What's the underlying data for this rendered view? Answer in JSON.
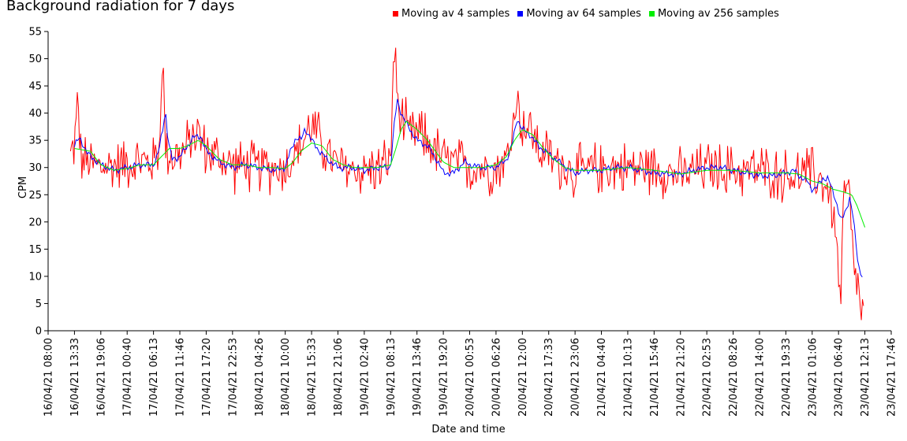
{
  "chart_data": {
    "type": "line",
    "title": "Background radiation for 7 days",
    "xlabel": "Date and time",
    "ylabel": "CPM",
    "ylim": [
      0,
      55
    ],
    "yticks": [
      0,
      5,
      10,
      15,
      20,
      25,
      30,
      35,
      40,
      45,
      50,
      55
    ],
    "x_tick_labels": [
      "16/04/21 08:00",
      "16/04/21 13:33",
      "16/04/21 19:06",
      "17/04/21 00:40",
      "17/04/21 06:13",
      "17/04/21 11:46",
      "17/04/21 17:20",
      "17/04/21 22:53",
      "18/04/21 04:26",
      "18/04/21 10:00",
      "18/04/21 15:33",
      "18/04/21 21:06",
      "19/04/21 02:40",
      "19/04/21 08:13",
      "19/04/21 13:46",
      "19/04/21 19:20",
      "20/04/21 00:53",
      "20/04/21 06:26",
      "20/04/21 12:00",
      "20/04/21 17:33",
      "20/04/21 23:06",
      "21/04/21 04:40",
      "21/04/21 10:13",
      "21/04/21 15:46",
      "21/04/21 21:20",
      "22/04/21 02:53",
      "22/04/21 08:26",
      "22/04/21 14:00",
      "22/04/21 19:33",
      "23/04/21 01:06",
      "23/04/21 06:40",
      "23/04/21 12:13",
      "23/04/21 17:46"
    ],
    "grid": false,
    "legend_position": "top",
    "series": [
      {
        "name": "Moving av 4 samples",
        "color": "#ff0000",
        "keypoints": [
          [
            0.85,
            32
          ],
          [
            0.95,
            33.5
          ],
          [
            1.05,
            36
          ],
          [
            1.12,
            43.5
          ],
          [
            1.25,
            31
          ],
          [
            1.5,
            31
          ],
          [
            2,
            30
          ],
          [
            3,
            31
          ],
          [
            4,
            31
          ],
          [
            4.25,
            35
          ],
          [
            4.3,
            47
          ],
          [
            4.35,
            49.8
          ],
          [
            4.45,
            34
          ],
          [
            4.7,
            32
          ],
          [
            5.2,
            33
          ],
          [
            5.6,
            37
          ],
          [
            6,
            33
          ],
          [
            7,
            30.5
          ],
          [
            8,
            30
          ],
          [
            9,
            30
          ],
          [
            9.6,
            34
          ],
          [
            10,
            38
          ],
          [
            10.4,
            34
          ],
          [
            11,
            30
          ],
          [
            12,
            29.5
          ],
          [
            12.6,
            30
          ],
          [
            13,
            31
          ],
          [
            13.08,
            45
          ],
          [
            13.12,
            52.8
          ],
          [
            13.3,
            40
          ],
          [
            13.7,
            36
          ],
          [
            14.2,
            36
          ],
          [
            15,
            31.5
          ],
          [
            16,
            30
          ],
          [
            17,
            30
          ],
          [
            17.5,
            32
          ],
          [
            17.75,
            43
          ],
          [
            18,
            38
          ],
          [
            18.3,
            37
          ],
          [
            18.7,
            33
          ],
          [
            19.3,
            31
          ],
          [
            20,
            29
          ],
          [
            21,
            30
          ],
          [
            22,
            30
          ],
          [
            23,
            30
          ],
          [
            24,
            28.5
          ],
          [
            25,
            30
          ],
          [
            26,
            29.5
          ],
          [
            27,
            29.5
          ],
          [
            28,
            28.5
          ],
          [
            29,
            29
          ],
          [
            29.5,
            27
          ],
          [
            29.8,
            22
          ],
          [
            29.9,
            17
          ],
          [
            30,
            12
          ],
          [
            30.08,
            3.5
          ],
          [
            30.2,
            25
          ],
          [
            30.4,
            26
          ],
          [
            30.55,
            12
          ],
          [
            30.7,
            10
          ],
          [
            30.8,
            5
          ],
          [
            30.9,
            3
          ],
          [
            30.95,
            2.8
          ]
        ],
        "noise_amplitude": 4
      },
      {
        "name": "Moving av 64 samples",
        "color": "#0000ff",
        "keypoints": [
          [
            1,
            34
          ],
          [
            1.2,
            35.5
          ],
          [
            1.5,
            32.5
          ],
          [
            2,
            30.5
          ],
          [
            2.5,
            29.5
          ],
          [
            3,
            30
          ],
          [
            3.5,
            30.5
          ],
          [
            4,
            30.5
          ],
          [
            4.2,
            33
          ],
          [
            4.35,
            37
          ],
          [
            4.45,
            40.8
          ],
          [
            4.55,
            35
          ],
          [
            4.7,
            31.5
          ],
          [
            5,
            32
          ],
          [
            5.3,
            34
          ],
          [
            5.5,
            35.5
          ],
          [
            5.8,
            35.8
          ],
          [
            6,
            33
          ],
          [
            6.5,
            31
          ],
          [
            7,
            30
          ],
          [
            7.5,
            30.5
          ],
          [
            8,
            30
          ],
          [
            8.6,
            29.5
          ],
          [
            9,
            30
          ],
          [
            9.2,
            33
          ],
          [
            9.4,
            35.5
          ],
          [
            9.6,
            35
          ],
          [
            9.75,
            37.2
          ],
          [
            10,
            35
          ],
          [
            10.3,
            33
          ],
          [
            10.6,
            31.5
          ],
          [
            11,
            30
          ],
          [
            11.5,
            30
          ],
          [
            12,
            29.5
          ],
          [
            12.5,
            30
          ],
          [
            13,
            30
          ],
          [
            13.12,
            37
          ],
          [
            13.25,
            42.5
          ],
          [
            13.4,
            40
          ],
          [
            13.6,
            38
          ],
          [
            14,
            35
          ],
          [
            14.4,
            34
          ],
          [
            14.8,
            31
          ],
          [
            15,
            29
          ],
          [
            15.4,
            29
          ],
          [
            15.8,
            31
          ],
          [
            16,
            30.5
          ],
          [
            16.5,
            30
          ],
          [
            17,
            30
          ],
          [
            17.4,
            31.5
          ],
          [
            17.6,
            34
          ],
          [
            17.8,
            39
          ],
          [
            18,
            37
          ],
          [
            18.3,
            36
          ],
          [
            18.6,
            34
          ],
          [
            19,
            32.5
          ],
          [
            19.4,
            31
          ],
          [
            19.8,
            29.5
          ],
          [
            20,
            29
          ],
          [
            20.5,
            29.5
          ],
          [
            21,
            29.5
          ],
          [
            21.5,
            30
          ],
          [
            22,
            30
          ],
          [
            22.5,
            29.5
          ],
          [
            23,
            29
          ],
          [
            23.5,
            28.8
          ],
          [
            24,
            28.8
          ],
          [
            24.5,
            29.5
          ],
          [
            25,
            30
          ],
          [
            25.5,
            30
          ],
          [
            26,
            29.5
          ],
          [
            26.5,
            29
          ],
          [
            27,
            28.5
          ],
          [
            27.5,
            28.5
          ],
          [
            28,
            29
          ],
          [
            28.3,
            29.5
          ],
          [
            28.5,
            28.5
          ],
          [
            28.8,
            27.5
          ],
          [
            29,
            26
          ],
          [
            29.2,
            26.5
          ],
          [
            29.4,
            28
          ],
          [
            29.6,
            28
          ],
          [
            29.9,
            24
          ],
          [
            30.1,
            20
          ],
          [
            30.3,
            22.5
          ],
          [
            30.42,
            24.5
          ],
          [
            30.55,
            21
          ],
          [
            30.75,
            12
          ],
          [
            30.9,
            10
          ]
        ]
      },
      {
        "name": "Moving av 256 samples",
        "color": "#00ee00",
        "keypoints": [
          [
            1,
            33.5
          ],
          [
            1.6,
            33
          ],
          [
            2,
            30.5
          ],
          [
            2.5,
            29.5
          ],
          [
            3,
            29.8
          ],
          [
            3.5,
            30.5
          ],
          [
            4,
            30.5
          ],
          [
            4.3,
            32
          ],
          [
            4.6,
            33.5
          ],
          [
            5,
            33.5
          ],
          [
            5.3,
            34
          ],
          [
            5.7,
            35
          ],
          [
            6,
            34
          ],
          [
            6.5,
            31.5
          ],
          [
            7,
            30.5
          ],
          [
            7.5,
            30.5
          ],
          [
            8,
            30
          ],
          [
            8.5,
            30
          ],
          [
            9,
            29.8
          ],
          [
            9.3,
            31
          ],
          [
            9.6,
            33
          ],
          [
            10,
            34.5
          ],
          [
            10.4,
            34
          ],
          [
            10.8,
            31.5
          ],
          [
            11.2,
            30.5
          ],
          [
            11.6,
            30
          ],
          [
            12,
            30
          ],
          [
            12.5,
            30
          ],
          [
            13,
            30.5
          ],
          [
            13.2,
            33.5
          ],
          [
            13.4,
            37
          ],
          [
            13.6,
            38.5
          ],
          [
            14,
            37
          ],
          [
            14.4,
            35
          ],
          [
            14.7,
            33
          ],
          [
            15,
            31
          ],
          [
            15.4,
            30
          ],
          [
            16,
            30
          ],
          [
            16.5,
            30
          ],
          [
            17,
            30.5
          ],
          [
            17.4,
            32
          ],
          [
            17.7,
            35
          ],
          [
            18,
            37
          ],
          [
            18.4,
            36
          ],
          [
            18.8,
            33.5
          ],
          [
            19.2,
            31.5
          ],
          [
            19.6,
            30
          ],
          [
            20,
            29.5
          ],
          [
            21,
            29.5
          ],
          [
            22,
            30
          ],
          [
            23,
            29.5
          ],
          [
            24,
            28.8
          ],
          [
            25,
            29.5
          ],
          [
            26,
            29.5
          ],
          [
            27,
            29
          ],
          [
            28,
            29
          ],
          [
            28.5,
            28.8
          ],
          [
            29,
            27.5
          ],
          [
            29.4,
            27
          ],
          [
            29.8,
            26
          ],
          [
            30.2,
            25.5
          ],
          [
            30.5,
            25
          ],
          [
            30.7,
            23
          ],
          [
            31,
            19
          ]
        ]
      }
    ]
  }
}
